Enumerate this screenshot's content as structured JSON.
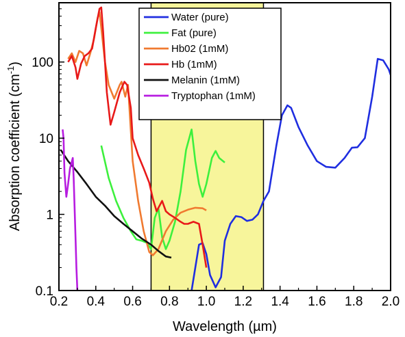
{
  "chart_data": {
    "type": "line",
    "title": "",
    "xlabel": "Wavelength (µm)",
    "ylabel": "Absorption coefficient (cm",
    "ylabel_unit_sup": "-1",
    "ylabel_close": ")",
    "xlim": [
      0.2,
      2.0
    ],
    "ylim": [
      0.1,
      600
    ],
    "yscale": "log",
    "x_ticks": [
      0.2,
      0.4,
      0.6,
      0.8,
      1.0,
      1.2,
      1.4,
      1.6,
      1.8,
      2.0
    ],
    "x_tick_labels": [
      "0.2",
      "0.4",
      "0.6",
      "0.8",
      "1.0",
      "1.2",
      "1.4",
      "1.6",
      "1.8",
      "2.0"
    ],
    "y_ticks": [
      0.1,
      1,
      10,
      100
    ],
    "y_tick_labels": [
      "0.1",
      "1",
      "10",
      "100"
    ],
    "grid": false,
    "legend_position": "top-right",
    "highlight_band": {
      "x": [
        0.7,
        1.31
      ],
      "color": "#f7f59b"
    },
    "series": [
      {
        "name": "Water (pure)",
        "color": "#1f2ee0",
        "points": [
          [
            0.92,
            0.1
          ],
          [
            0.94,
            0.2
          ],
          [
            0.96,
            0.4
          ],
          [
            0.98,
            0.42
          ],
          [
            1.0,
            0.3
          ],
          [
            1.02,
            0.16
          ],
          [
            1.05,
            0.11
          ],
          [
            1.08,
            0.15
          ],
          [
            1.1,
            0.45
          ],
          [
            1.13,
            0.75
          ],
          [
            1.16,
            0.95
          ],
          [
            1.19,
            0.92
          ],
          [
            1.22,
            0.82
          ],
          [
            1.25,
            0.85
          ],
          [
            1.28,
            1.0
          ],
          [
            1.31,
            1.5
          ],
          [
            1.34,
            2.0
          ],
          [
            1.38,
            8
          ],
          [
            1.41,
            20
          ],
          [
            1.44,
            27
          ],
          [
            1.46,
            25
          ],
          [
            1.5,
            14
          ],
          [
            1.55,
            8
          ],
          [
            1.6,
            5
          ],
          [
            1.65,
            4.2
          ],
          [
            1.7,
            4.1
          ],
          [
            1.75,
            5.5
          ],
          [
            1.79,
            7.5
          ],
          [
            1.82,
            7.6
          ],
          [
            1.86,
            10
          ],
          [
            1.9,
            35
          ],
          [
            1.93,
            110
          ],
          [
            1.96,
            105
          ],
          [
            1.99,
            80
          ],
          [
            2.0,
            68
          ]
        ]
      },
      {
        "name": "Fat (pure)",
        "color": "#3df03d",
        "points": [
          [
            0.43,
            8.0
          ],
          [
            0.47,
            3.0
          ],
          [
            0.51,
            1.5
          ],
          [
            0.55,
            0.9
          ],
          [
            0.59,
            0.6
          ],
          [
            0.62,
            0.47
          ],
          [
            0.65,
            0.45
          ],
          [
            0.68,
            0.42
          ],
          [
            0.7,
            0.35
          ],
          [
            0.72,
            0.9
          ],
          [
            0.74,
            1.2
          ],
          [
            0.76,
            0.5
          ],
          [
            0.78,
            0.35
          ],
          [
            0.8,
            0.45
          ],
          [
            0.83,
            0.8
          ],
          [
            0.86,
            2.0
          ],
          [
            0.89,
            7.0
          ],
          [
            0.92,
            13
          ],
          [
            0.94,
            5.0
          ],
          [
            0.96,
            2.5
          ],
          [
            0.98,
            1.7
          ],
          [
            1.0,
            2.5
          ],
          [
            1.03,
            5.5
          ],
          [
            1.05,
            6.8
          ],
          [
            1.07,
            5.5
          ],
          [
            1.1,
            4.8
          ]
        ]
      },
      {
        "name": "Hb02 (1mM)",
        "color": "#f07a30",
        "points": [
          [
            0.25,
            110
          ],
          [
            0.27,
            130
          ],
          [
            0.29,
            100
          ],
          [
            0.31,
            140
          ],
          [
            0.33,
            130
          ],
          [
            0.35,
            90
          ],
          [
            0.37,
            130
          ],
          [
            0.39,
            200
          ],
          [
            0.41,
            380
          ],
          [
            0.42,
            450
          ],
          [
            0.43,
            280
          ],
          [
            0.45,
            100
          ],
          [
            0.47,
            50
          ],
          [
            0.5,
            33
          ],
          [
            0.53,
            50
          ],
          [
            0.54,
            55
          ],
          [
            0.56,
            35
          ],
          [
            0.575,
            50
          ],
          [
            0.6,
            5
          ],
          [
            0.63,
            1.5
          ],
          [
            0.66,
            0.6
          ],
          [
            0.69,
            0.32
          ],
          [
            0.71,
            0.29
          ],
          [
            0.74,
            0.35
          ],
          [
            0.78,
            0.6
          ],
          [
            0.82,
            0.85
          ],
          [
            0.86,
            1.05
          ],
          [
            0.9,
            1.15
          ],
          [
            0.94,
            1.22
          ],
          [
            0.98,
            1.2
          ],
          [
            1.0,
            1.13
          ]
        ]
      },
      {
        "name": "Hb (1mM)",
        "color": "#e81919",
        "points": [
          [
            0.25,
            100
          ],
          [
            0.27,
            120
          ],
          [
            0.29,
            85
          ],
          [
            0.3,
            60
          ],
          [
            0.32,
            95
          ],
          [
            0.34,
            120
          ],
          [
            0.36,
            130
          ],
          [
            0.38,
            150
          ],
          [
            0.4,
            280
          ],
          [
            0.42,
            500
          ],
          [
            0.43,
            520
          ],
          [
            0.44,
            250
          ],
          [
            0.46,
            40
          ],
          [
            0.48,
            15
          ],
          [
            0.5,
            22
          ],
          [
            0.53,
            40
          ],
          [
            0.555,
            55
          ],
          [
            0.57,
            50
          ],
          [
            0.59,
            25
          ],
          [
            0.6,
            10
          ],
          [
            0.63,
            6.0
          ],
          [
            0.66,
            4.0
          ],
          [
            0.69,
            2.6
          ],
          [
            0.71,
            1.6
          ],
          [
            0.73,
            1.1
          ],
          [
            0.76,
            1.5
          ],
          [
            0.78,
            1.1
          ],
          [
            0.8,
            1.0
          ],
          [
            0.83,
            0.9
          ],
          [
            0.86,
            0.8
          ],
          [
            0.88,
            0.75
          ],
          [
            0.9,
            0.75
          ],
          [
            0.93,
            0.8
          ],
          [
            0.96,
            0.75
          ],
          [
            0.98,
            0.4
          ],
          [
            1.0,
            0.2
          ]
        ]
      },
      {
        "name": "Melanin (1mM)",
        "color": "#111111",
        "points": [
          [
            0.21,
            7.0
          ],
          [
            0.25,
            5.0
          ],
          [
            0.3,
            3.6
          ],
          [
            0.35,
            2.5
          ],
          [
            0.4,
            1.7
          ],
          [
            0.45,
            1.3
          ],
          [
            0.5,
            0.95
          ],
          [
            0.55,
            0.75
          ],
          [
            0.6,
            0.6
          ],
          [
            0.65,
            0.48
          ],
          [
            0.7,
            0.4
          ],
          [
            0.74,
            0.33
          ],
          [
            0.78,
            0.28
          ],
          [
            0.81,
            0.27
          ]
        ]
      },
      {
        "name": "Tryptophan (1mM)",
        "color": "#b71ce0",
        "points": [
          [
            0.22,
            13
          ],
          [
            0.225,
            10
          ],
          [
            0.23,
            3.5
          ],
          [
            0.24,
            1.7
          ],
          [
            0.25,
            2.5
          ],
          [
            0.26,
            4.0
          ],
          [
            0.275,
            5.5
          ],
          [
            0.28,
            3.0
          ],
          [
            0.29,
            0.5
          ],
          [
            0.295,
            0.2
          ],
          [
            0.3,
            0.1
          ]
        ]
      }
    ]
  }
}
